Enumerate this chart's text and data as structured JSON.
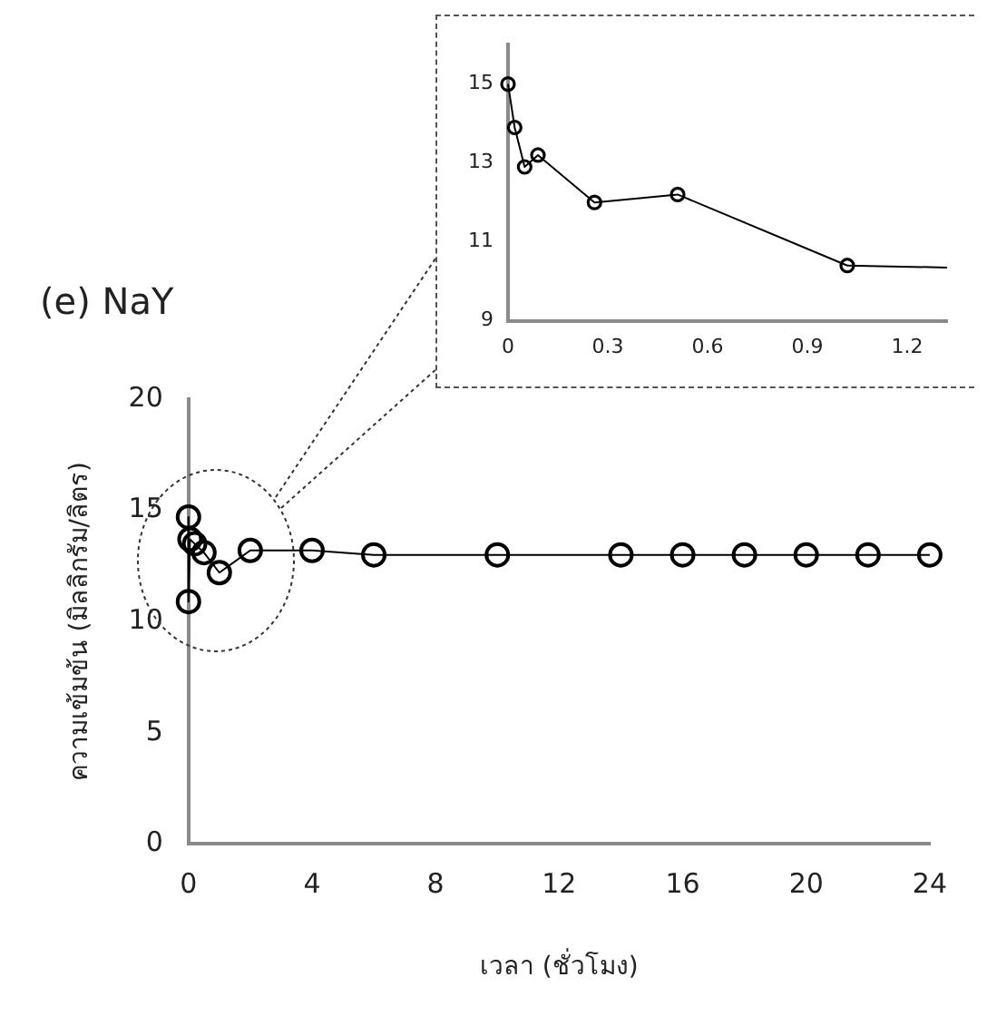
{
  "chart_data": [
    {
      "type": "line",
      "title": "(e) NaY",
      "xlabel": "เวลา (ชั่วโมง)",
      "ylabel": "ความเข้มข้น (มิลลิกรัม/ลิตร)",
      "marker": "circle",
      "xlim": [
        0,
        24
      ],
      "xticks": [
        0,
        4,
        8,
        12,
        16,
        20,
        24
      ],
      "ylim": [
        0,
        20
      ],
      "yticks": [
        0,
        5,
        10,
        15,
        20
      ],
      "series": [
        {
          "color": "#000000",
          "x": [
            0,
            0,
            0.05,
            0.2,
            0.5,
            1,
            2,
            4,
            6,
            10,
            14,
            16,
            18,
            20,
            22,
            24
          ],
          "values": [
            14.7,
            10.9,
            13.7,
            13.5,
            13.1,
            12.2,
            13.2,
            13.2,
            13.0,
            13.0,
            13.0,
            13.0,
            13.0,
            13.0,
            13.0,
            13.0
          ]
        }
      ]
    },
    {
      "type": "line",
      "xlim": [
        0,
        1.32
      ],
      "xticks": [
        0,
        0.3,
        0.6,
        0.9,
        1.2
      ],
      "ylim": [
        9,
        16
      ],
      "yticks": [
        9,
        11,
        13,
        15
      ],
      "series": [
        {
          "color": "#000000",
          "marker": "circle",
          "x": [
            0,
            0.02,
            0.05,
            0.09,
            0.26,
            0.51,
            1.02
          ],
          "values": [
            15.0,
            13.9,
            12.9,
            13.2,
            12.0,
            12.2,
            10.4
          ]
        },
        {
          "color": "#000000",
          "marker": "none",
          "x": [
            1.02,
            1.32
          ],
          "values": [
            10.4,
            10.35
          ]
        }
      ]
    }
  ]
}
